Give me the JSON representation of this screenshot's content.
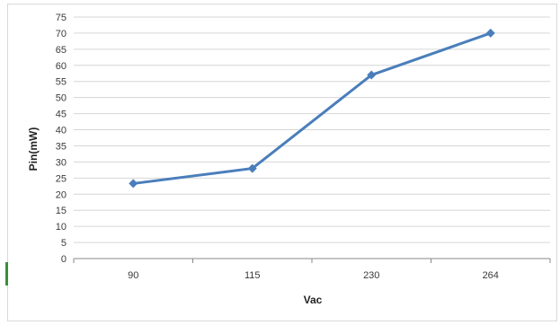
{
  "chart_data": {
    "type": "line",
    "categories": [
      "90",
      "115",
      "230",
      "264"
    ],
    "series": [
      {
        "values": [
          23.3,
          28,
          57,
          70
        ]
      }
    ],
    "xlabel": "Vac",
    "ylabel": "Pin(mW)",
    "ylim": [
      0,
      75
    ],
    "ytick_step": 5,
    "grid": true,
    "legend": "none",
    "colors": {
      "line": "#4a7ebb",
      "grid": "#d6d6d6",
      "axis": "#888888"
    }
  }
}
